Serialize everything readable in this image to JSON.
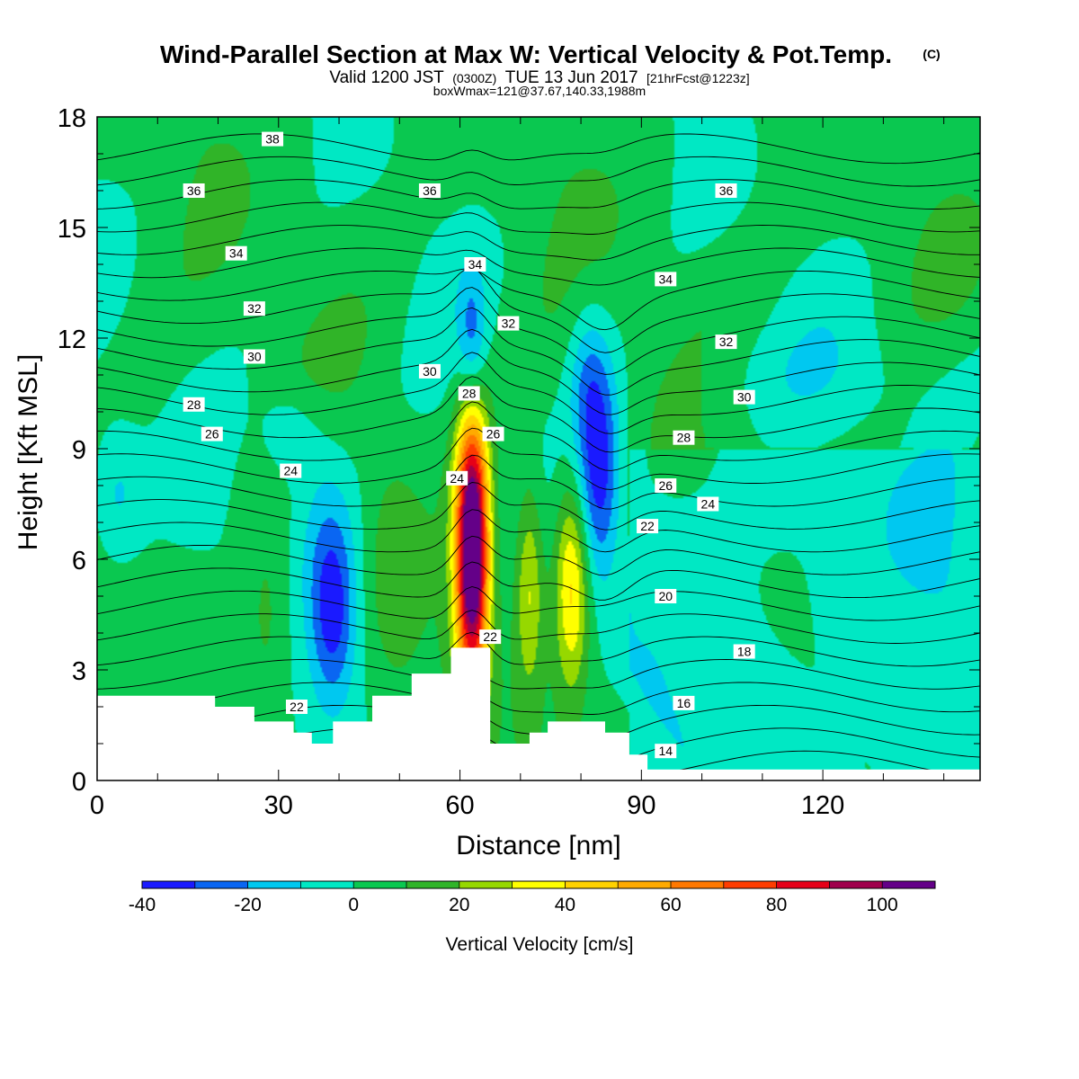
{
  "title": {
    "main": "Wind-Parallel Section at Max W: Vertical Velocity & Pot.Temp.",
    "copyright": "(C)",
    "valid_prefix": "Valid 1200 JST",
    "valid_utc": "(0300Z)",
    "valid_date": "TUE 13 Jun 2017",
    "forecast": "[21hrFcst@1223z]",
    "boxmax": "boxWmax=121@37.67,140.33,1988m"
  },
  "colors": {
    "terrain": "#ffffff",
    "isentrope": "#000000",
    "levels": [
      "#1a1aff",
      "#0a66f2",
      "#00c8f0",
      "#00e8c4",
      "#0ac850",
      "#30b428",
      "#96d800",
      "#ffff00",
      "#ffd200",
      "#ffaa00",
      "#ff7800",
      "#ff3c00",
      "#e60018",
      "#a0004c",
      "#640088"
    ]
  },
  "chart_data": {
    "type": "contour",
    "xlabel": "Distance [nm]",
    "ylabel": "Height [Kft MSL]",
    "xlim": [
      0,
      146
    ],
    "ylim": [
      0,
      18
    ],
    "xticks": [
      0,
      30,
      60,
      90,
      120
    ],
    "yticks": [
      0,
      3,
      6,
      9,
      12,
      15,
      18
    ],
    "colorbar": {
      "title": "Vertical Velocity [cm/s]",
      "boundaries": [
        -40,
        -30,
        -20,
        -10,
        0,
        10,
        20,
        30,
        40,
        50,
        60,
        70,
        80,
        90,
        100,
        110
      ],
      "tick_labels": [
        -40,
        -20,
        0,
        20,
        40,
        60,
        80,
        100
      ]
    },
    "terrain_profile": [
      [
        0,
        2.3
      ],
      [
        19.5,
        2.3
      ],
      [
        19.5,
        2.0
      ],
      [
        26,
        2.0
      ],
      [
        26,
        1.6
      ],
      [
        32.5,
        1.6
      ],
      [
        32.5,
        1.3
      ],
      [
        35.5,
        1.3
      ],
      [
        35.5,
        1.0
      ],
      [
        39,
        1.0
      ],
      [
        39,
        1.6
      ],
      [
        45.5,
        1.6
      ],
      [
        45.5,
        2.3
      ],
      [
        52,
        2.3
      ],
      [
        52,
        2.9
      ],
      [
        58.5,
        2.9
      ],
      [
        58.5,
        3.6
      ],
      [
        65,
        3.6
      ],
      [
        65,
        1.0
      ],
      [
        71.5,
        1.0
      ],
      [
        71.5,
        1.3
      ],
      [
        74.5,
        1.3
      ],
      [
        74.5,
        1.6
      ],
      [
        84,
        1.6
      ],
      [
        84,
        1.3
      ],
      [
        88,
        1.3
      ],
      [
        88,
        0.7
      ],
      [
        91,
        0.7
      ],
      [
        91,
        0.3
      ],
      [
        146,
        0.3
      ]
    ],
    "vertical_velocity_features": [
      {
        "x": 62,
        "z": 6.3,
        "sx": 1.9,
        "sz": 2.6,
        "w": 125,
        "desc": "main updraft"
      },
      {
        "x": 78.5,
        "z": 5.3,
        "sx": 2.0,
        "sz": 2.0,
        "w": 42
      },
      {
        "x": 71.5,
        "z": 5.3,
        "sx": 1.6,
        "sz": 2.0,
        "w": 28
      },
      {
        "x": 28,
        "z": 4.5,
        "sx": 2.6,
        "sz": 2.0,
        "w": 12
      },
      {
        "x": 49,
        "z": 5.5,
        "sx": 2.6,
        "sz": 2.0,
        "w": 10
      },
      {
        "x": 39,
        "z": 4.5,
        "sx": 2.6,
        "sz": 1.7,
        "w": -33
      },
      {
        "x": 38,
        "z": 7.0,
        "sx": 4.0,
        "sz": 2.0,
        "w": -15
      },
      {
        "x": 83,
        "z": 8.4,
        "sx": 2.4,
        "sz": 2.0,
        "w": -36
      },
      {
        "x": 81,
        "z": 11.0,
        "sx": 2.4,
        "sz": 1.5,
        "w": -16
      },
      {
        "x": 62,
        "z": 11.8,
        "sx": 1.6,
        "sz": 1.4,
        "w": -28
      },
      {
        "x": 3,
        "z": 7.8,
        "sx": 3.2,
        "sz": 1.4,
        "w": -16
      },
      {
        "x": 32,
        "z": 9.4,
        "sx": 3.5,
        "sz": 0.9,
        "w": -14
      }
    ],
    "isentrope_labels": [
      {
        "text": "38",
        "x": 29,
        "z": 17.4
      },
      {
        "text": "36",
        "x": 16,
        "z": 16.0
      },
      {
        "text": "36",
        "x": 55,
        "z": 16.0
      },
      {
        "text": "36",
        "x": 104,
        "z": 16.0
      },
      {
        "text": "34",
        "x": 23,
        "z": 14.3
      },
      {
        "text": "34",
        "x": 62.5,
        "z": 14.0
      },
      {
        "text": "34",
        "x": 94,
        "z": 13.6
      },
      {
        "text": "32",
        "x": 26,
        "z": 12.8
      },
      {
        "text": "32",
        "x": 68,
        "z": 12.4
      },
      {
        "text": "32",
        "x": 104,
        "z": 11.9
      },
      {
        "text": "30",
        "x": 26,
        "z": 11.5
      },
      {
        "text": "30",
        "x": 55,
        "z": 11.1
      },
      {
        "text": "30",
        "x": 107,
        "z": 10.4
      },
      {
        "text": "28",
        "x": 16,
        "z": 10.2
      },
      {
        "text": "28",
        "x": 61.5,
        "z": 10.5
      },
      {
        "text": "28",
        "x": 97,
        "z": 9.3
      },
      {
        "text": "26",
        "x": 19,
        "z": 9.4
      },
      {
        "text": "26",
        "x": 65.5,
        "z": 9.4
      },
      {
        "text": "26",
        "x": 94,
        "z": 8.0
      },
      {
        "text": "24",
        "x": 32,
        "z": 8.4
      },
      {
        "text": "24",
        "x": 59.5,
        "z": 8.2
      },
      {
        "text": "24",
        "x": 101,
        "z": 7.5
      },
      {
        "text": "22",
        "x": 91,
        "z": 6.9
      },
      {
        "text": "22",
        "x": 65,
        "z": 3.9
      },
      {
        "text": "22",
        "x": 33,
        "z": 2.0
      },
      {
        "text": "20",
        "x": 94,
        "z": 5.0
      },
      {
        "text": "18",
        "x": 107,
        "z": 3.5
      },
      {
        "text": "16",
        "x": 97,
        "z": 2.1
      },
      {
        "text": "14",
        "x": 94,
        "z": 0.8
      }
    ]
  }
}
